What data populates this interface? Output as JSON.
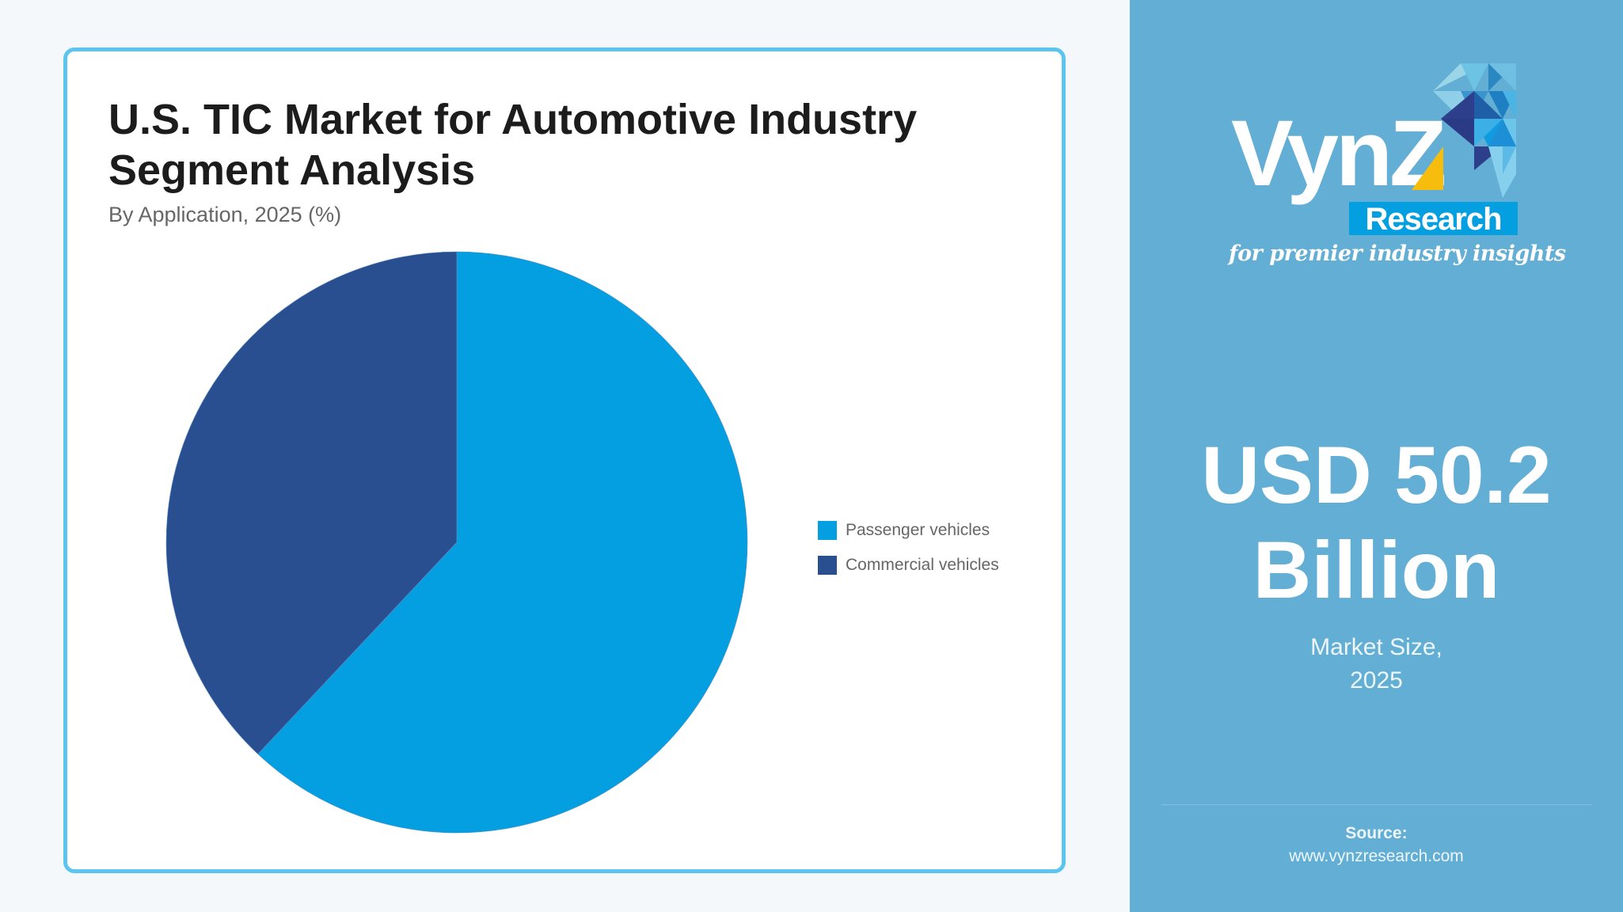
{
  "card": {
    "title_line1": "U.S. TIC Market for Automotive Industry",
    "title_line2": "Segment Analysis",
    "subtitle": "By Application, 2025 (%)"
  },
  "legend": [
    {
      "label": "Passenger vehicles",
      "color": "#049fe0"
    },
    {
      "label": "Commercial vehicles",
      "color": "#2a4f90"
    }
  ],
  "chart_data": {
    "type": "pie",
    "title": "U.S. TIC Market for Automotive Industry Segment Analysis",
    "subtitle": "By Application, 2025 (%)",
    "categories": [
      "Passenger vehicles",
      "Commercial vehicles"
    ],
    "values": [
      62,
      38
    ],
    "colors": [
      "#049fe0",
      "#2a4f90"
    ],
    "start_angle_deg": 0,
    "direction": "clockwise",
    "legend_position": "right",
    "data_labels": false
  },
  "brand": {
    "name": "VynZ",
    "sub": "Research",
    "tagline": "for premier industry insights",
    "accent_color": "#f7bd0c"
  },
  "market": {
    "value_line1": "USD 50.2",
    "value_line2": "Billion",
    "label_line1": "Market Size,",
    "label_line2": "2025"
  },
  "source": {
    "label": "Source:",
    "url": "www.vynzresearch.com"
  }
}
